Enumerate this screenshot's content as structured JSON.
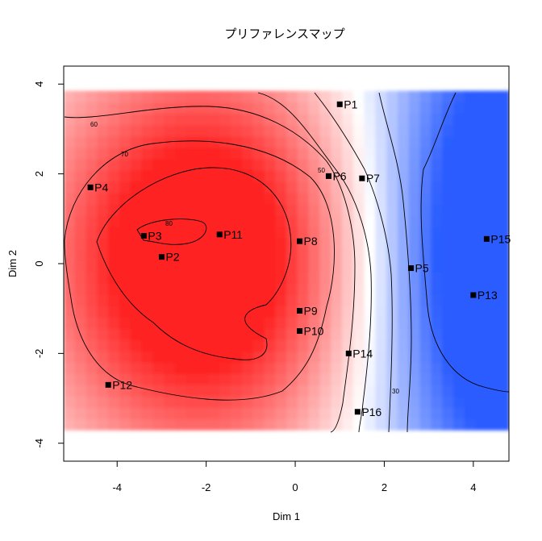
{
  "chart_data": {
    "type": "heatmap",
    "title": "プリファレンスマップ",
    "xlabel": "Dim 1",
    "ylabel": "Dim 2",
    "xlim": [
      -5.2,
      4.8
    ],
    "ylim": [
      -4.4,
      4.4
    ],
    "map_extent": {
      "x": [
        -5.2,
        4.8
      ],
      "y": [
        -3.7,
        3.85
      ]
    },
    "xticks": [
      -4,
      -2,
      0,
      2,
      4
    ],
    "yticks": [
      -4,
      -2,
      0,
      2,
      4
    ],
    "x_tick_labels": [
      "-4",
      "-2",
      "0",
      "2",
      "4"
    ],
    "y_tick_labels": [
      "-4",
      "-2",
      "0",
      "2",
      "4"
    ],
    "color_scale": {
      "high": "#ff2020",
      "mid": "#ffffff",
      "low": "#2a5cff"
    },
    "contour_labels": [
      "30",
      "50",
      "60",
      "70",
      "80"
    ],
    "points": [
      {
        "label": "P1",
        "x": 1.0,
        "y": 3.55
      },
      {
        "label": "P2",
        "x": -3.0,
        "y": 0.15
      },
      {
        "label": "P3",
        "x": -3.4,
        "y": 0.62
      },
      {
        "label": "P4",
        "x": -4.6,
        "y": 1.7
      },
      {
        "label": "P5",
        "x": 2.6,
        "y": -0.1
      },
      {
        "label": "P6",
        "x": 0.75,
        "y": 1.95
      },
      {
        "label": "P7",
        "x": 1.5,
        "y": 1.9
      },
      {
        "label": "P8",
        "x": 0.1,
        "y": 0.5
      },
      {
        "label": "P9",
        "x": 0.1,
        "y": -1.05
      },
      {
        "label": "P10",
        "x": 0.1,
        "y": -1.5
      },
      {
        "label": "P11",
        "x": -1.7,
        "y": 0.65
      },
      {
        "label": "P12",
        "x": -4.2,
        "y": -2.7
      },
      {
        "label": "P13",
        "x": 4.0,
        "y": -0.7
      },
      {
        "label": "P14",
        "x": 1.2,
        "y": -2.0
      },
      {
        "label": "P15",
        "x": 4.3,
        "y": 0.55
      },
      {
        "label": "P16",
        "x": 1.4,
        "y": -3.3
      }
    ]
  }
}
